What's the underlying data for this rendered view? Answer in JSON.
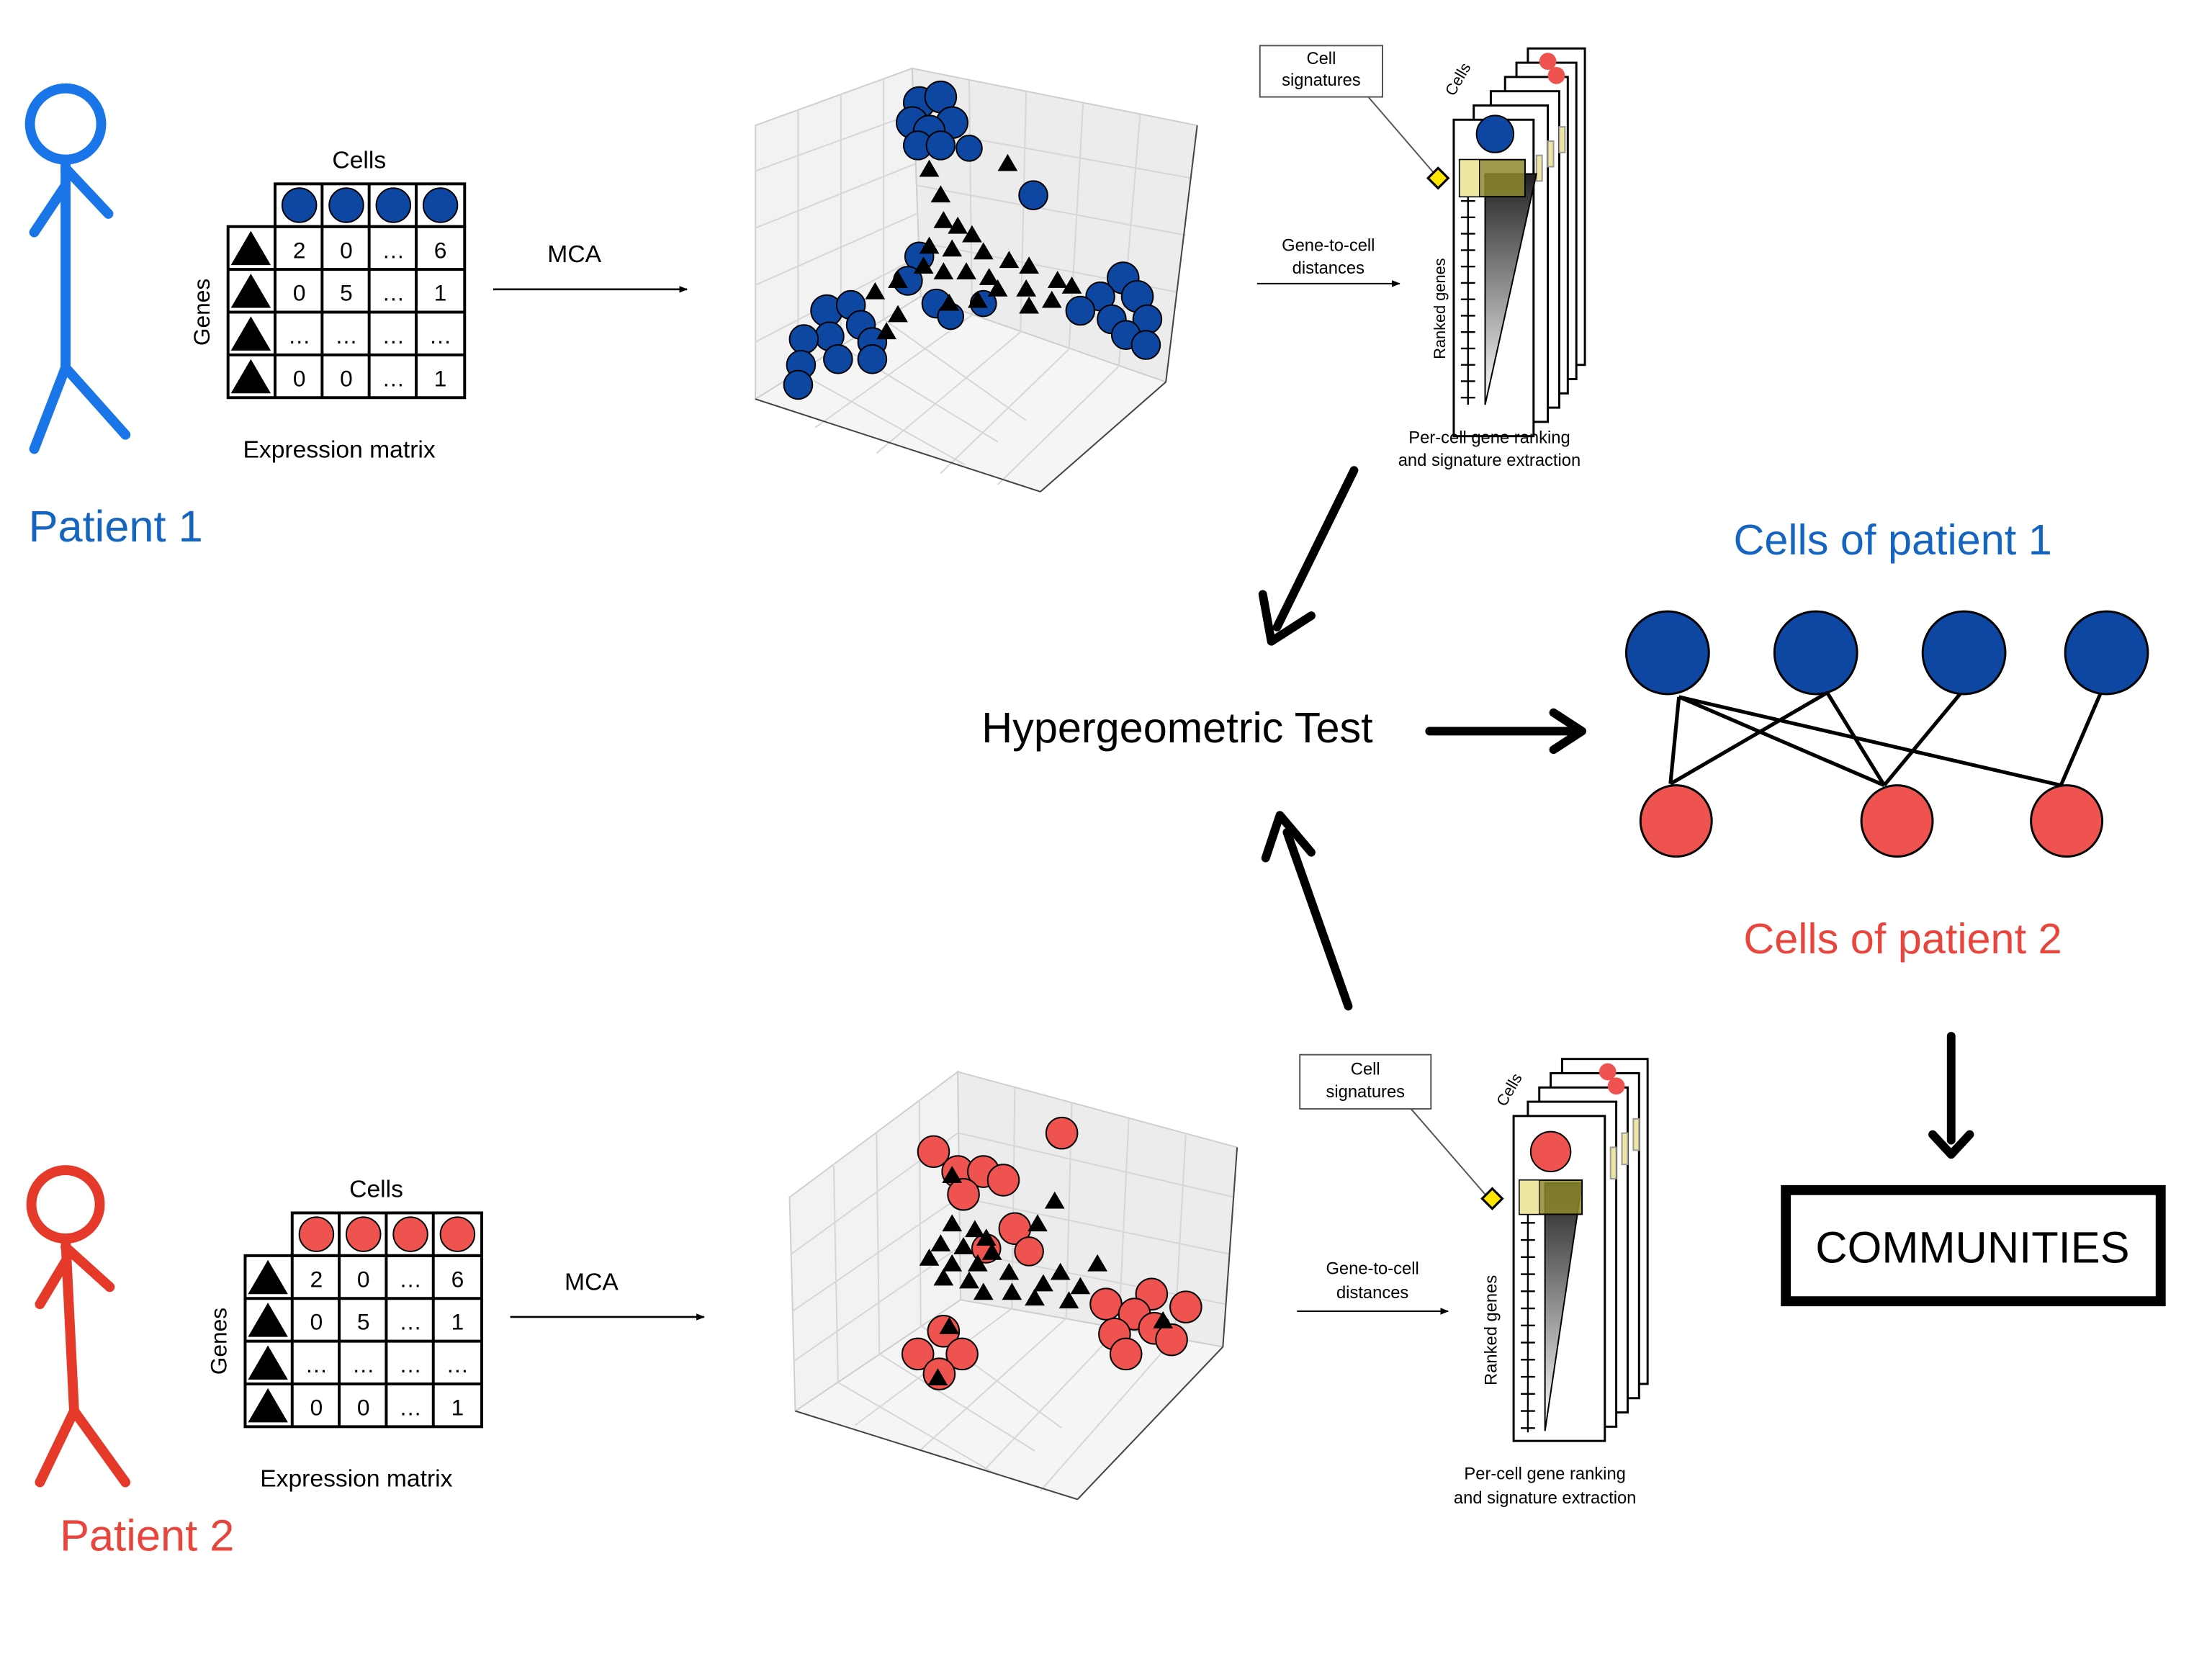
{
  "colors": {
    "patient1": "#1565c0",
    "patient1_stick": "#1a76e8",
    "patient2": "#e8453c",
    "patient2_stick": "#e53a2a",
    "dot_blue": "#0d47a1",
    "dot_red": "#ef5350",
    "signature_box": "#7a7628",
    "diamond": "#ffe600"
  },
  "patient1": {
    "label": "Patient 1",
    "matrix": {
      "cells_label": "Cells",
      "genes_label": "Genes",
      "caption": "Expression matrix",
      "rows": [
        [
          "2",
          "0",
          "…",
          "6"
        ],
        [
          "0",
          "5",
          "…",
          "1"
        ],
        [
          "…",
          "…",
          "…",
          "…"
        ],
        [
          "0",
          "0",
          "…",
          "1"
        ]
      ]
    },
    "mca_label": "MCA",
    "distances_label_line1": "Gene-to-cell",
    "distances_label_line2": "distances",
    "signatures": {
      "box_line1": "Cell",
      "box_line2": "signatures",
      "cells_label": "Cells",
      "ranked_label": "Ranked genes",
      "caption_line1": "Per-cell gene ranking",
      "caption_line2": "and signature extraction"
    }
  },
  "patient2": {
    "label": "Patient 2",
    "matrix": {
      "cells_label": "Cells",
      "genes_label": "Genes",
      "caption": "Expression matrix",
      "rows": [
        [
          "2",
          "0",
          "…",
          "6"
        ],
        [
          "0",
          "5",
          "…",
          "1"
        ],
        [
          "…",
          "…",
          "…",
          "…"
        ],
        [
          "0",
          "0",
          "…",
          "1"
        ]
      ]
    },
    "mca_label": "MCA",
    "distances_label_line1": "Gene-to-cell",
    "distances_label_line2": "distances",
    "signatures": {
      "box_line1": "Cell",
      "box_line2": "signatures",
      "cells_label": "Cells",
      "ranked_label": "Ranked genes",
      "caption_line1": "Per-cell gene ranking",
      "caption_line2": "and signature extraction"
    }
  },
  "center": {
    "test_label": "Hypergeometric Test"
  },
  "network": {
    "top_label": "Cells of patient 1",
    "bottom_label": "Cells of patient 2",
    "edges": [
      [
        0,
        0
      ],
      [
        0,
        1
      ],
      [
        0,
        2
      ],
      [
        1,
        0
      ],
      [
        1,
        1
      ],
      [
        2,
        1
      ],
      [
        3,
        2
      ]
    ]
  },
  "result": {
    "label": "COMMUNITIES"
  }
}
